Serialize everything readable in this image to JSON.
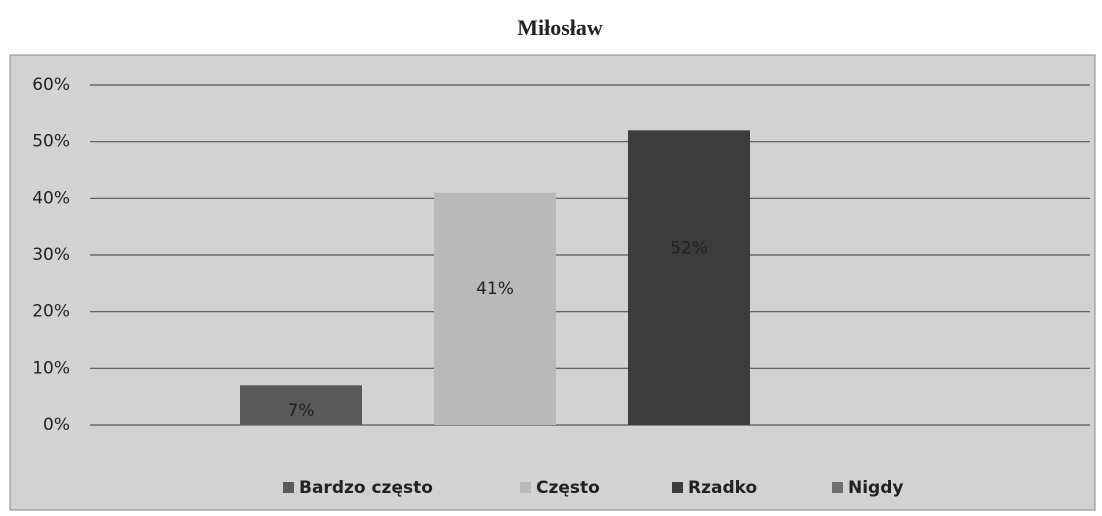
{
  "chart_data": {
    "type": "bar",
    "title": "Miłosław",
    "series": [
      {
        "name": "Bardzo często",
        "color": "#5a5a5a",
        "values": [
          7
        ],
        "value_labels": [
          "7%"
        ]
      },
      {
        "name": "Często",
        "color": "#b9b9b9",
        "values": [
          41
        ],
        "value_labels": [
          "41%"
        ]
      },
      {
        "name": "Rzadko",
        "color": "#3c3c3c",
        "values": [
          52
        ],
        "value_labels": [
          "52%"
        ]
      },
      {
        "name": "Nigdy",
        "color": "#6e6e6e",
        "values": [
          0
        ]
      }
    ],
    "ylim": [
      0,
      60
    ],
    "yticks": [
      {
        "value": 0,
        "label": "0%"
      },
      {
        "value": 10,
        "label": "10%"
      },
      {
        "value": 20,
        "label": "20%"
      },
      {
        "value": 30,
        "label": "30%"
      },
      {
        "value": 40,
        "label": "40%"
      },
      {
        "value": 50,
        "label": "50%"
      },
      {
        "value": 60,
        "label": "60%"
      }
    ],
    "grid": true,
    "legend": "bottom"
  }
}
